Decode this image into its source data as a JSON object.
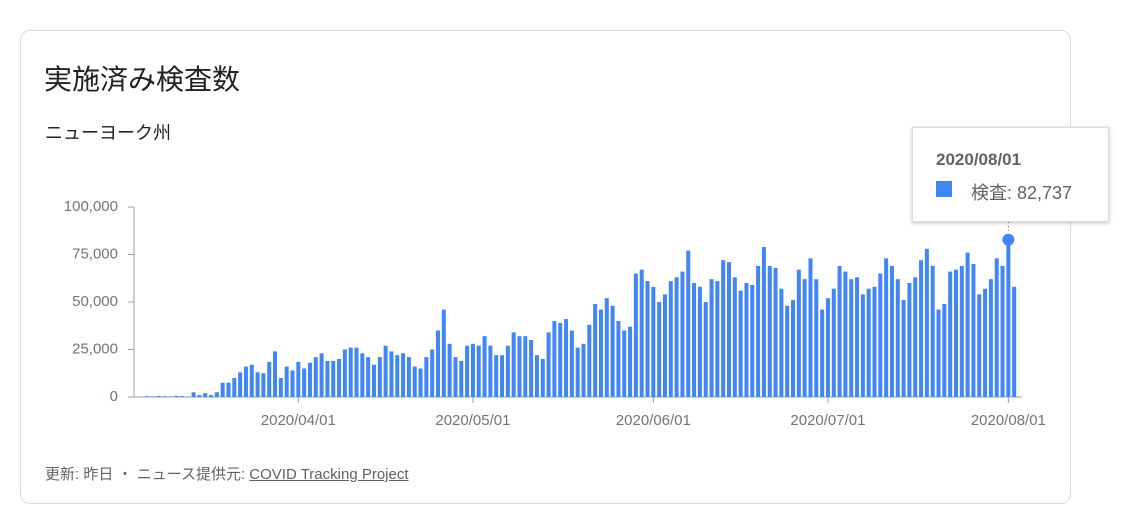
{
  "chart_data": {
    "type": "bar",
    "title": "実施済み検査数",
    "subtitle": "ニューヨーク州",
    "categories": [
      null,
      null,
      null,
      null,
      null,
      null,
      null,
      null,
      null,
      null,
      null,
      null,
      null,
      null,
      null,
      null,
      null,
      null,
      null,
      null,
      null,
      null,
      null,
      null,
      null,
      null,
      "2020/04/01",
      null,
      null,
      null,
      null,
      null,
      null,
      null,
      null,
      null,
      null,
      null,
      null,
      null,
      null,
      null,
      null,
      null,
      null,
      null,
      null,
      null,
      null,
      null,
      null,
      null,
      null,
      null,
      null,
      null,
      "2020/05/01",
      null,
      null,
      null,
      null,
      null,
      null,
      null,
      null,
      null,
      null,
      null,
      null,
      null,
      null,
      null,
      null,
      null,
      null,
      null,
      null,
      null,
      null,
      null,
      null,
      null,
      null,
      null,
      null,
      null,
      null,
      "2020/06/01",
      null,
      null,
      null,
      null,
      null,
      null,
      null,
      null,
      null,
      null,
      null,
      null,
      null,
      null,
      null,
      null,
      null,
      null,
      null,
      null,
      null,
      null,
      null,
      null,
      null,
      null,
      null,
      null,
      null,
      "2020/07/01",
      null,
      null,
      null,
      null,
      null,
      null,
      null,
      null,
      null,
      null,
      null,
      null,
      null,
      null,
      null,
      null,
      null,
      null,
      null,
      null,
      null,
      null,
      null,
      null,
      null,
      null,
      null,
      null,
      null,
      null,
      "2020/08/01",
      null
    ],
    "values": [
      400,
      300,
      500,
      400,
      300,
      600,
      500,
      200,
      2500,
      1000,
      2000,
      1000,
      2500,
      7500,
      7500,
      10000,
      13000,
      16000,
      17000,
      13000,
      12500,
      18500,
      24000,
      10000,
      16000,
      14000,
      18500,
      15000,
      18000,
      21000,
      23000,
      19000,
      19000,
      20000,
      25000,
      26000,
      26000,
      23000,
      21000,
      17000,
      21000,
      27000,
      24000,
      22000,
      23000,
      21000,
      16000,
      15000,
      21000,
      25000,
      35000,
      46000,
      28000,
      21000,
      19000,
      27000,
      28000,
      27000,
      32000,
      27000,
      22000,
      22000,
      27000,
      34000,
      32000,
      32000,
      30000,
      22000,
      20000,
      34000,
      40000,
      39000,
      41000,
      35000,
      26000,
      28000,
      38000,
      49000,
      46000,
      52000,
      48000,
      40000,
      35000,
      37000,
      65000,
      67000,
      61000,
      58000,
      50000,
      54000,
      61000,
      63000,
      66000,
      77000,
      60000,
      58000,
      50000,
      62000,
      61000,
      72000,
      71000,
      63000,
      56000,
      60000,
      59000,
      69000,
      79000,
      69000,
      68000,
      57000,
      48000,
      51000,
      67000,
      62000,
      73000,
      62000,
      46000,
      52000,
      57000,
      69000,
      66000,
      62000,
      63000,
      54000,
      57000,
      58000,
      65000,
      73000,
      69000,
      62000,
      51000,
      60000,
      63000,
      72000,
      78000,
      69000,
      46000,
      49000,
      66000,
      67000,
      69000,
      76000,
      70000,
      54000,
      57000,
      62000,
      73000,
      69000,
      82737,
      58000
    ],
    "color": "#4285f4",
    "ylim": [
      0,
      100000
    ],
    "yticks": [
      0,
      {
        "value": 25000,
        "label": "25,000"
      },
      {
        "value": 50000,
        "label": "50,000"
      },
      {
        "value": 75000,
        "label": "75,000"
      },
      {
        "value": 100000,
        "label": "100,000"
      }
    ],
    "tooltip": {
      "title": "2020/08/01",
      "text": "検査: 82,737"
    }
  },
  "footer": {
    "updated": "更新: 昨日",
    "separator": "・",
    "source_label": "ニュース提供元:",
    "source": "COVID Tracking Project"
  }
}
